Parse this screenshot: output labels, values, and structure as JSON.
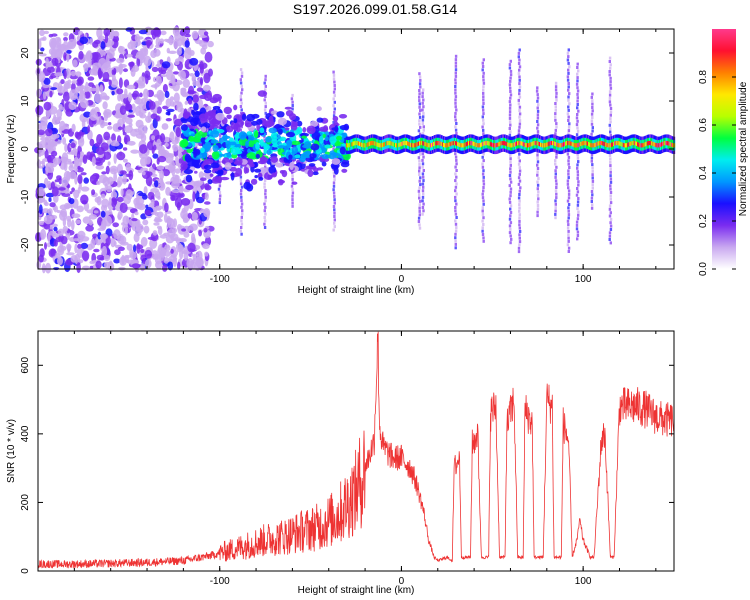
{
  "chart_data": [
    {
      "type": "heatmap",
      "title": "S197.2026.099.01.58.G14",
      "xlabel": "Height of straight line (km)",
      "ylabel": "Frequency (Hz)",
      "xlim": [
        -200,
        150
      ],
      "ylim": [
        -25,
        25
      ],
      "x_ticks": [
        -100,
        0,
        100
      ],
      "x_tick_labels": [
        "-100",
        "0",
        "100"
      ],
      "y_ticks": [
        -20,
        -10,
        0,
        10,
        20
      ],
      "y_tick_labels": [
        "-20",
        "-10",
        "0",
        "10",
        "20"
      ],
      "colorbar": {
        "label": "Normalized spectral amplitude",
        "range": [
          0,
          1
        ],
        "ticks": [
          0,
          0.2,
          0.4,
          0.6,
          0.8
        ],
        "tick_labels": [
          "0.0",
          "0.2",
          "0.4",
          "0.6",
          "0.8"
        ],
        "colormap": [
          "#ffffff",
          "#c9a8f0",
          "#7a2cf0",
          "#1a10ff",
          "#0098ff",
          "#00eeee",
          "#00ff40",
          "#b8ff00",
          "#ffe800",
          "#ff8000",
          "#ff1030",
          "#ff3a8c"
        ]
      },
      "features": {
        "noise_region_km": [
          -200,
          -120
        ],
        "transition_region_km": [
          -120,
          -30
        ],
        "central_line_start_km": -20,
        "central_line_freq_hz": 1,
        "vertical_streaks_km": [
          -100,
          -88,
          -75,
          -60,
          -37,
          10,
          12,
          30,
          45,
          60,
          65,
          75,
          85,
          92,
          97,
          105,
          115
        ]
      }
    },
    {
      "type": "line",
      "title": "",
      "xlabel": "Height of straight line (km)",
      "ylabel": "SNR (10 * v/v)",
      "xlim": [
        -200,
        150
      ],
      "ylim": [
        0,
        700
      ],
      "x_ticks": [
        -100,
        0,
        100
      ],
      "x_tick_labels": [
        "-100",
        "0",
        "100"
      ],
      "y_ticks": [
        0,
        200,
        400,
        600
      ],
      "y_tick_labels": [
        "0",
        "200",
        "400",
        "600"
      ],
      "series": [
        {
          "name": "SNR",
          "color": "#ee3333",
          "x": [
            -200,
            -180,
            -160,
            -140,
            -120,
            -105,
            -95,
            -85,
            -75,
            -65,
            -55,
            -45,
            -35,
            -25,
            -20,
            -15,
            -13,
            -12,
            -10,
            -5,
            0,
            5,
            8,
            12,
            15,
            18,
            20,
            25,
            28,
            29,
            32,
            33,
            38,
            39,
            42,
            44,
            48,
            49,
            52,
            54,
            57,
            58,
            62,
            64,
            67,
            68,
            72,
            73,
            78,
            80,
            83,
            84,
            88,
            89,
            92,
            94,
            97,
            98,
            100,
            104,
            106,
            110,
            112,
            115,
            117,
            120,
            125,
            130,
            135,
            140,
            145,
            150
          ],
          "y": [
            20,
            20,
            22,
            25,
            30,
            45,
            60,
            75,
            90,
            100,
            115,
            130,
            160,
            230,
            300,
            380,
            690,
            420,
            360,
            330,
            330,
            300,
            260,
            180,
            90,
            40,
            30,
            40,
            30,
            300,
            330,
            40,
            40,
            370,
            400,
            40,
            40,
            460,
            480,
            40,
            40,
            420,
            500,
            40,
            40,
            470,
            430,
            40,
            40,
            500,
            480,
            40,
            40,
            430,
            380,
            40,
            100,
            150,
            90,
            40,
            40,
            380,
            400,
            40,
            40,
            480,
            480,
            480,
            470,
            450,
            440,
            440
          ]
        }
      ]
    }
  ]
}
